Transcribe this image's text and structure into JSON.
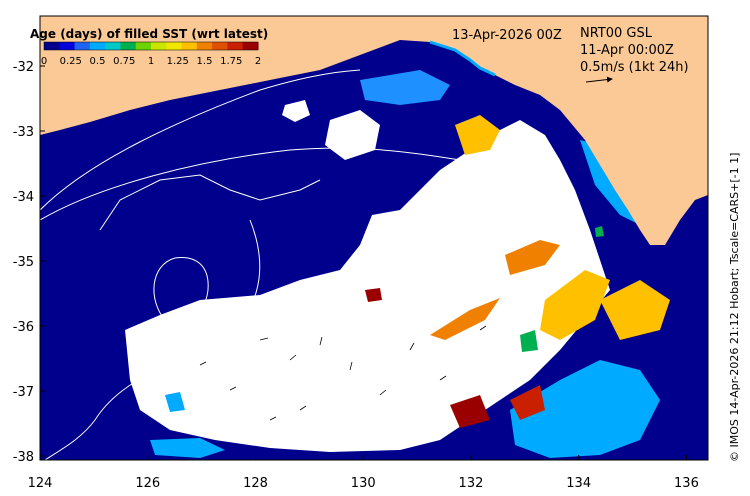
{
  "map": {
    "date_label": "13-Apr-2026 00Z",
    "product": "NRT00 GSL",
    "product_time": "11-Apr 00:00Z",
    "vector_scale": "0.5m/s (1kt 24h)",
    "credit": "© IMOS 14-Apr-2026 21:12 Hobart; Tscale=CARS+[-1 1]",
    "lon_ticks": [
      "124",
      "126",
      "128",
      "130",
      "132",
      "134",
      "136"
    ],
    "lat_ticks": [
      "-32",
      "-33",
      "-34",
      "-35",
      "-36",
      "-37",
      "-38"
    ]
  },
  "colorbar": {
    "title": "Age (days) of filled SST (wrt latest)",
    "ticks": [
      "0",
      "0.25",
      "0.5",
      "0.75",
      "1",
      "1.25",
      "1.5",
      "1.75",
      "2"
    ],
    "colors": [
      "#00008c",
      "#0000d8",
      "#1e64f0",
      "#00aaff",
      "#00c8c8",
      "#00b050",
      "#6ed200",
      "#c8e600",
      "#f0e600",
      "#ffc000",
      "#f08000",
      "#e05000",
      "#c82000",
      "#9a0000"
    ]
  },
  "colors": {
    "land": "#fbc996",
    "ocean_filled": "#00008c",
    "missing": "#ffffff"
  }
}
